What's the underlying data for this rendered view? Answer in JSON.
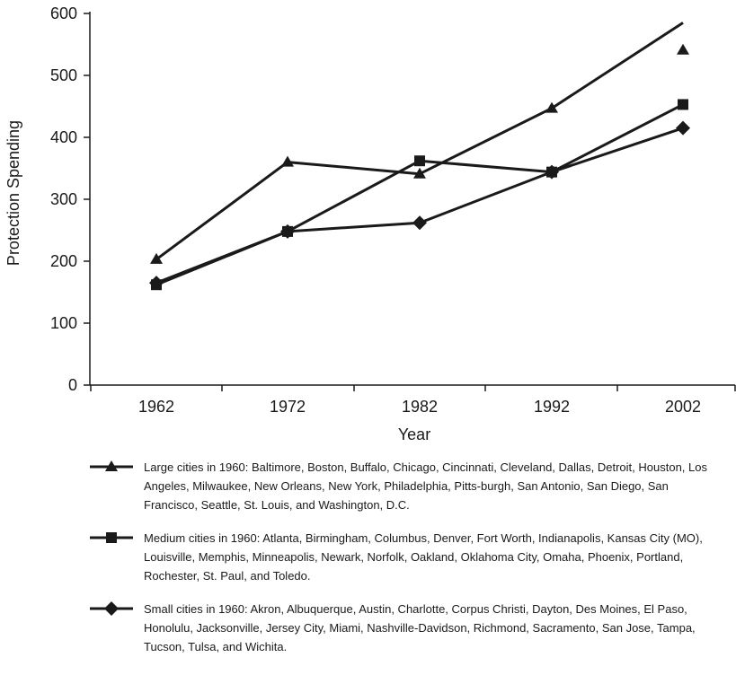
{
  "chart_data": {
    "type": "line",
    "xlabel": "Year",
    "ylabel": "Protection Spending",
    "x": [
      1962,
      1972,
      1982,
      1992,
      2002
    ],
    "xticks": [
      "1962",
      "1972",
      "1982",
      "1992",
      "2002"
    ],
    "yticks": [
      0,
      100,
      200,
      300,
      400,
      500,
      600
    ],
    "ylim": [
      0,
      600
    ],
    "grid": false,
    "legend_position": "below",
    "line_color": "#1a1a1a",
    "series": [
      {
        "key": "large",
        "marker": "triangle",
        "name": "Large cities in 1960: Baltimore, Boston, Buffalo, Chicago, Cincinnati, Cleveland, Dallas, Detroit, Houston, Los Angeles, Milwaukee, New Orleans, New York, Philadelphia, Pitts-burgh, San Antonio, San Diego, San Francisco, Seattle, St. Louis, and Washington, D.C.",
        "values": [
          203,
          360,
          341,
          447,
          541
        ],
        "extra_line": {
          "x": [
            1992,
            2002
          ],
          "y": [
            447,
            585
          ]
        }
      },
      {
        "key": "medium",
        "marker": "square",
        "name": "Medium cities in 1960: Atlanta, Birmingham, Columbus, Denver, Fort Worth, Indianapolis, Kansas City (MO), Louisville, Memphis, Minneapolis, Newark, Norfolk, Oakland, Oklahoma City, Omaha, Phoenix, Portland, Rochester, St. Paul, and Toledo.",
        "values": [
          162,
          248,
          362,
          344,
          453
        ]
      },
      {
        "key": "small",
        "marker": "diamond",
        "name": "Small cities in 1960: Akron, Albuquerque, Austin, Charlotte, Corpus Christi, Dayton, Des Moines, El Paso, Honolulu, Jacksonville, Jersey City, Miami, Nashville-Davidson, Richmond, Sacramento, San Jose, Tampa, Tucson, Tulsa, and Wichita.",
        "values": [
          165,
          248,
          262,
          344,
          415
        ]
      }
    ]
  }
}
